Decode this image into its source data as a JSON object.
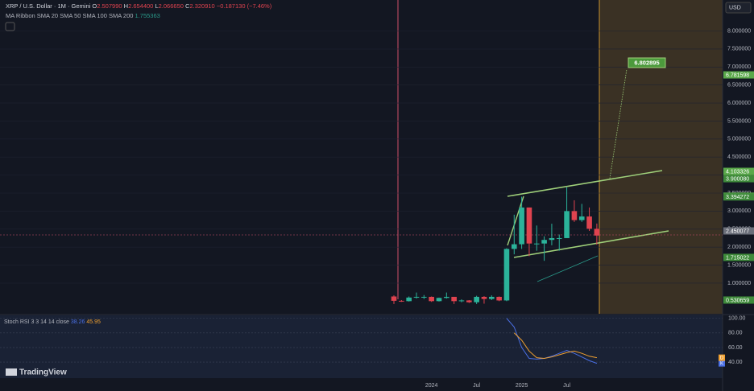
{
  "header": {
    "symbol": "XRP / U.S. Dollar · 1M · Gemini",
    "o_label": "O",
    "o": "2.507990",
    "h_label": "H",
    "h": "2.654400",
    "l_label": "L",
    "l": "2.066650",
    "c_label": "C",
    "c": "2.320910",
    "change": "−0.187130 (−7.46%)",
    "indicator": "MA Ribbon SMA 20 SMA 50 SMA 100 SMA 200",
    "indicator_value": "1.755363",
    "currency": "USD"
  },
  "target_label": "6.802895",
  "logo": "TradingView",
  "chart_data": [
    {
      "type": "candlestick",
      "categories": [
        null,
        null,
        null,
        null,
        null,
        "2024",
        null,
        null,
        null,
        null,
        null,
        "Jul",
        null,
        null,
        null,
        null,
        null,
        "2025",
        null,
        null,
        null,
        null,
        null,
        "Jul",
        null,
        null,
        null,
        null
      ],
      "open": [
        0.63,
        0.51,
        0.5,
        0.6,
        0.62,
        0.62,
        0.5,
        0.59,
        0.62,
        0.5,
        0.52,
        0.47,
        0.62,
        0.56,
        0.62,
        0.52,
        1.95,
        2.08,
        3.1,
        2.1,
        2.1,
        2.2,
        2.25,
        2.25,
        3.0,
        2.75,
        2.85,
        2.50799
      ],
      "high": [
        0.66,
        0.53,
        0.63,
        0.74,
        0.67,
        0.63,
        0.6,
        0.74,
        0.62,
        0.55,
        0.53,
        0.65,
        0.64,
        0.66,
        0.63,
        1.97,
        2.9,
        3.4,
        3.1,
        2.6,
        2.3,
        2.65,
        2.35,
        3.66,
        3.3,
        3.2,
        3.1,
        2.6544
      ],
      "low": [
        0.42,
        0.48,
        0.49,
        0.57,
        0.56,
        0.48,
        0.49,
        0.57,
        0.42,
        0.47,
        0.45,
        0.42,
        0.43,
        0.53,
        0.5,
        0.5,
        1.8,
        1.95,
        1.75,
        1.9,
        1.62,
        2.05,
        1.9,
        2.25,
        2.7,
        2.7,
        2.45,
        2.06665
      ],
      "close": [
        0.51,
        0.5,
        0.6,
        0.62,
        0.62,
        0.5,
        0.59,
        0.62,
        0.5,
        0.52,
        0.47,
        0.62,
        0.56,
        0.62,
        0.52,
        1.95,
        2.08,
        3.1,
        2.1,
        2.1,
        2.2,
        2.25,
        2.25,
        3.0,
        2.75,
        2.85,
        2.51,
        2.32091
      ],
      "up_color": "#2bb39a",
      "down_color": "#e0434f",
      "ylim": [
        0.15,
        8.86
      ],
      "yticks": [
        {
          "value": 8,
          "label": "8.000000"
        },
        {
          "value": 7.5,
          "label": "7.500000"
        },
        {
          "value": 7,
          "label": "7.000000"
        },
        {
          "value": 6.5,
          "label": "6.500000"
        },
        {
          "value": 6,
          "label": "6.000000"
        },
        {
          "value": 5.5,
          "label": "5.500000"
        },
        {
          "value": 5,
          "label": "5.000000"
        },
        {
          "value": 4.5,
          "label": "4.500000"
        },
        {
          "value": 4,
          "label": "4.000000"
        },
        {
          "value": 3.5,
          "label": "3.500000"
        },
        {
          "value": 3,
          "label": "3.000000"
        },
        {
          "value": 2.5,
          "label": "2.500000"
        },
        {
          "value": 2,
          "label": "2.000000"
        },
        {
          "value": 1.5,
          "label": "1.500000"
        },
        {
          "value": 1,
          "label": "1.000000"
        }
      ],
      "price_badges": [
        {
          "value": 4.103326,
          "label": "4.103326",
          "color": "#5aa84a"
        },
        {
          "value": 3.90008,
          "label": "3.900080",
          "color": "#3e8a3a"
        },
        {
          "value": 3.414188,
          "label": "3.414188",
          "color": "#5aa84a"
        },
        {
          "value": 3.394272,
          "label": "3.394272",
          "color": "#3e8a3a"
        },
        {
          "value": 2.450077,
          "label": "2.450077",
          "color": "#6b6f7a"
        },
        {
          "value": 1.715022,
          "label": "1.715022",
          "color": "#3e8a3a"
        },
        {
          "value": 0.530659,
          "label": "0.530659",
          "color": "#3e8a3a"
        },
        {
          "value": 6.781598,
          "label": "6.781598",
          "color": "#5aa84a"
        }
      ],
      "grid": true
    },
    {
      "type": "line",
      "title": "Stoch RSI 3 3 14 14 close",
      "series": [
        {
          "name": "K",
          "color": "#4a6fe3",
          "values": [
            null,
            null,
            null,
            null,
            null,
            null,
            null,
            null,
            null,
            null,
            null,
            null,
            null,
            null,
            null,
            100,
            88,
            60,
            45,
            44,
            45,
            48,
            52,
            56,
            52,
            47,
            42,
            38.26
          ],
          "value_label": "38.26"
        },
        {
          "name": "D",
          "color": "#f0a030",
          "values": [
            null,
            null,
            null,
            null,
            null,
            null,
            null,
            null,
            null,
            null,
            null,
            null,
            null,
            null,
            null,
            null,
            80,
            70,
            55,
            46,
            45,
            47,
            50,
            53,
            55,
            52,
            48,
            45.95
          ],
          "value_label": "45.95"
        }
      ],
      "ylim": [
        18,
        104
      ],
      "yticks": [
        {
          "value": 100,
          "label": "100.00"
        },
        {
          "value": 80,
          "label": "80.00"
        },
        {
          "value": 60,
          "label": "60.00"
        },
        {
          "value": 40,
          "label": "40.00"
        }
      ]
    }
  ]
}
